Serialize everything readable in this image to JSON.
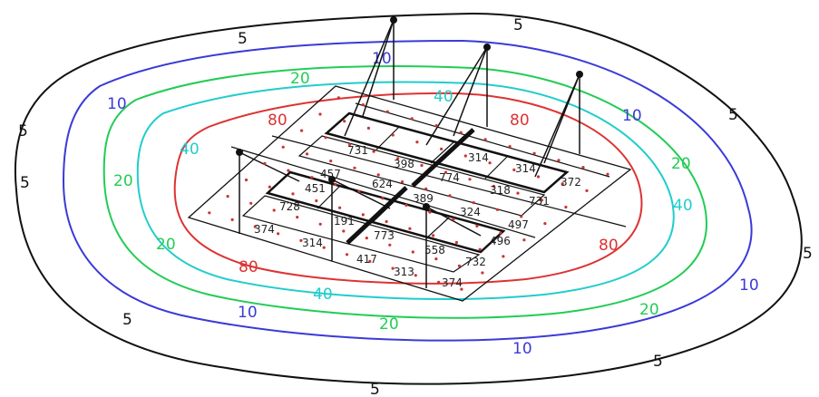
{
  "colors": {
    "c5": "#111111",
    "c10": "#3a3ad8",
    "c20": "#22cc55",
    "c40": "#22cccc",
    "c80": "#dd3333",
    "grid": "#111111",
    "points": "#cc3333"
  },
  "contour_labels": {
    "five": "5",
    "ten": "10",
    "twenty": "20",
    "forty": "40",
    "eighty": "80"
  },
  "values": {
    "v1": "731",
    "v2": "398",
    "v3": "624",
    "v4": "774",
    "v5": "314",
    "v6": "318",
    "v7": "314",
    "v8": "372",
    "v9": "731",
    "v10": "457",
    "v11": "451",
    "v12": "728",
    "v13": "389",
    "v14": "324",
    "v15": "497",
    "v16": "191",
    "v17": "773",
    "v18": "374",
    "v19": "314",
    "v20": "558",
    "v21": "496",
    "v22": "732",
    "v23": "417",
    "v24": "313",
    "v25": "374"
  }
}
